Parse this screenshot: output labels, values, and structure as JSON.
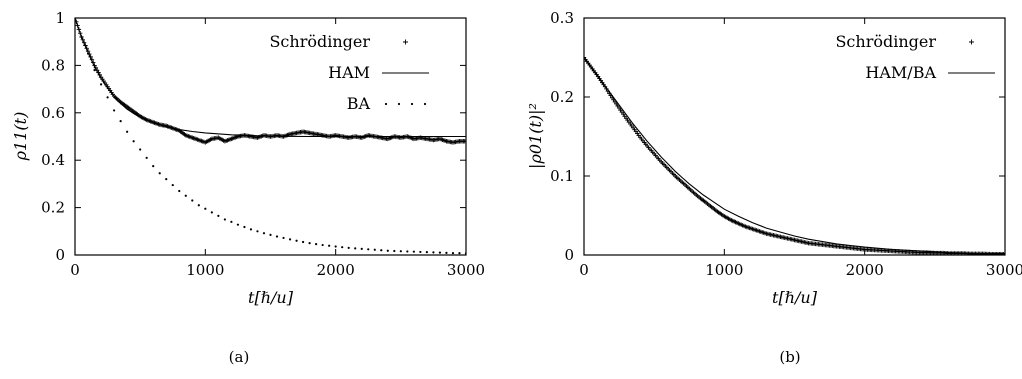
{
  "chart_data": [
    {
      "type": "line",
      "panel_caption": "(a)",
      "xlabel": "t[ℏ/u]",
      "ylabel": "ρ11(t)",
      "xlim": [
        0,
        3000
      ],
      "ylim": [
        0,
        1
      ],
      "xticks": [
        "0",
        "1000",
        "2000",
        "3000"
      ],
      "yticks": [
        "0",
        "0.2",
        "0.4",
        "0.6",
        "0.8",
        "1"
      ],
      "legend_position": "top-right",
      "series": [
        {
          "name": "Schrödinger",
          "style": "plus-markers",
          "x": [
            0,
            50,
            100,
            150,
            200,
            250,
            300,
            350,
            400,
            450,
            500,
            550,
            600,
            650,
            700,
            750,
            800,
            850,
            900,
            950,
            1000,
            1050,
            1100,
            1150,
            1200,
            1250,
            1300,
            1350,
            1400,
            1450,
            1500,
            1550,
            1600,
            1650,
            1700,
            1750,
            1800,
            1850,
            1900,
            1950,
            2000,
            2050,
            2100,
            2150,
            2200,
            2250,
            2300,
            2350,
            2400,
            2450,
            2500,
            2550,
            2600,
            2650,
            2700,
            2750,
            2800,
            2850,
            2900,
            2950,
            3000
          ],
          "values": [
            1.0,
            0.92,
            0.86,
            0.8,
            0.75,
            0.71,
            0.67,
            0.645,
            0.625,
            0.605,
            0.585,
            0.57,
            0.56,
            0.55,
            0.545,
            0.535,
            0.525,
            0.505,
            0.495,
            0.485,
            0.475,
            0.49,
            0.495,
            0.48,
            0.49,
            0.5,
            0.505,
            0.5,
            0.495,
            0.505,
            0.5,
            0.505,
            0.5,
            0.51,
            0.515,
            0.52,
            0.515,
            0.51,
            0.505,
            0.5,
            0.505,
            0.5,
            0.495,
            0.5,
            0.495,
            0.505,
            0.5,
            0.495,
            0.49,
            0.5,
            0.495,
            0.5,
            0.49,
            0.495,
            0.49,
            0.485,
            0.49,
            0.48,
            0.475,
            0.48,
            0.48
          ]
        },
        {
          "name": "HAM",
          "style": "solid-line",
          "x": [
            0,
            50,
            100,
            150,
            200,
            250,
            300,
            350,
            400,
            450,
            500,
            600,
            700,
            800,
            900,
            1000,
            1200,
            1400,
            1600,
            1800,
            2000,
            2200,
            2400,
            2600,
            2800,
            3000
          ],
          "values": [
            1.0,
            0.92,
            0.855,
            0.795,
            0.745,
            0.705,
            0.67,
            0.64,
            0.615,
            0.597,
            0.581,
            0.558,
            0.541,
            0.529,
            0.521,
            0.515,
            0.507,
            0.503,
            0.501,
            0.5,
            0.5,
            0.5,
            0.5,
            0.5,
            0.5,
            0.5
          ]
        },
        {
          "name": "BA",
          "style": "dotted",
          "x": [
            0,
            50,
            100,
            150,
            200,
            250,
            300,
            350,
            400,
            450,
            500,
            550,
            600,
            650,
            700,
            750,
            800,
            850,
            900,
            950,
            1000,
            1050,
            1100,
            1150,
            1200,
            1250,
            1300,
            1350,
            1400,
            1450,
            1500,
            1550,
            1600,
            1650,
            1700,
            1750,
            1800,
            1850,
            1900,
            1950,
            2000,
            2050,
            2100,
            2150,
            2200,
            2250,
            2300,
            2350,
            2400,
            2450,
            2500,
            2550,
            2600,
            2650,
            2700,
            2750,
            2800,
            2850,
            2900,
            2950,
            3000
          ],
          "values": [
            1.0,
            0.92,
            0.85,
            0.78,
            0.72,
            0.665,
            0.61,
            0.565,
            0.52,
            0.48,
            0.445,
            0.41,
            0.375,
            0.345,
            0.32,
            0.295,
            0.27,
            0.25,
            0.23,
            0.21,
            0.195,
            0.18,
            0.165,
            0.15,
            0.14,
            0.128,
            0.118,
            0.108,
            0.1,
            0.092,
            0.085,
            0.078,
            0.072,
            0.066,
            0.06,
            0.055,
            0.05,
            0.046,
            0.042,
            0.039,
            0.036,
            0.033,
            0.03,
            0.028,
            0.026,
            0.024,
            0.022,
            0.02,
            0.018,
            0.017,
            0.016,
            0.015,
            0.014,
            0.013,
            0.012,
            0.011,
            0.01,
            0.009,
            0.008,
            0.008,
            0.007
          ]
        }
      ]
    },
    {
      "type": "line",
      "panel_caption": "(b)",
      "xlabel": "t[ℏ/u]",
      "ylabel": "|ρ01(t)|²",
      "xlim": [
        0,
        3000
      ],
      "ylim": [
        0,
        0.3
      ],
      "xticks": [
        "0",
        "1000",
        "2000",
        "3000"
      ],
      "yticks": [
        "0",
        "0.1",
        "0.2",
        "0.3"
      ],
      "legend_position": "top-right",
      "series": [
        {
          "name": "Schrödinger",
          "style": "plus-markers",
          "x": [
            0,
            50,
            100,
            150,
            200,
            250,
            300,
            350,
            400,
            450,
            500,
            550,
            600,
            650,
            700,
            750,
            800,
            850,
            900,
            950,
            1000,
            1050,
            1100,
            1150,
            1200,
            1250,
            1300,
            1350,
            1400,
            1450,
            1500,
            1550,
            1600,
            1650,
            1700,
            1750,
            1800,
            1850,
            1900,
            1950,
            2000,
            2050,
            2100,
            2150,
            2200,
            2250,
            2300,
            2350,
            2400,
            2450,
            2500,
            2550,
            2600,
            2650,
            2700,
            2750,
            2800,
            2850,
            2900,
            2950,
            3000
          ],
          "values": [
            0.25,
            0.238,
            0.226,
            0.213,
            0.199,
            0.186,
            0.173,
            0.161,
            0.149,
            0.138,
            0.128,
            0.118,
            0.109,
            0.1,
            0.092,
            0.084,
            0.076,
            0.069,
            0.062,
            0.055,
            0.049,
            0.044,
            0.04,
            0.036,
            0.033,
            0.03,
            0.027,
            0.025,
            0.023,
            0.021,
            0.019,
            0.017,
            0.015,
            0.014,
            0.013,
            0.012,
            0.011,
            0.01,
            0.009,
            0.008,
            0.007,
            0.0065,
            0.006,
            0.0055,
            0.005,
            0.0045,
            0.004,
            0.0035,
            0.003,
            0.003,
            0.0025,
            0.0025,
            0.002,
            0.002,
            0.002,
            0.0015,
            0.0015,
            0.0015,
            0.001,
            0.001,
            0.001
          ]
        },
        {
          "name": "HAM/BA",
          "style": "solid-line",
          "x": [
            0,
            50,
            100,
            150,
            200,
            250,
            300,
            350,
            400,
            450,
            500,
            550,
            600,
            650,
            700,
            750,
            800,
            850,
            900,
            950,
            1000,
            1100,
            1200,
            1300,
            1400,
            1500,
            1600,
            1700,
            1800,
            1900,
            2000,
            2200,
            2400,
            2600,
            2800,
            3000
          ],
          "values": [
            0.25,
            0.238,
            0.226,
            0.214,
            0.202,
            0.19,
            0.178,
            0.166,
            0.155,
            0.144,
            0.134,
            0.124,
            0.115,
            0.106,
            0.098,
            0.09,
            0.083,
            0.076,
            0.07,
            0.064,
            0.058,
            0.049,
            0.041,
            0.034,
            0.029,
            0.024,
            0.02,
            0.017,
            0.014,
            0.012,
            0.01,
            0.007,
            0.005,
            0.003,
            0.002,
            0.002
          ]
        }
      ]
    }
  ]
}
